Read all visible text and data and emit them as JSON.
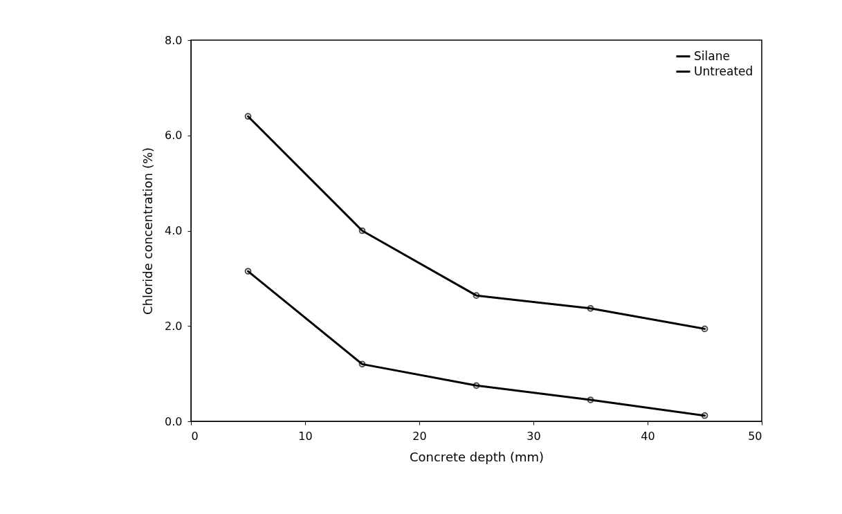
{
  "chart_data": {
    "type": "line",
    "xlabel": "Concrete depth (mm)",
    "ylabel": "Chloride concentration (%)",
    "x": [
      5,
      15,
      25,
      35,
      45
    ],
    "series": [
      {
        "name": "Silane",
        "color": "#000000",
        "values": [
          3.15,
          1.2,
          0.75,
          0.45,
          0.12
        ]
      },
      {
        "name": "Untreated",
        "color": "#000000",
        "values": [
          6.4,
          4.0,
          2.64,
          2.37,
          1.94
        ]
      }
    ],
    "xlim": [
      0,
      50
    ],
    "xticks": [
      0,
      10,
      20,
      30,
      40,
      50
    ],
    "ylim": [
      0,
      8
    ],
    "yticks": [
      {
        "value": 0,
        "label": "0.0"
      },
      {
        "value": 2,
        "label": "2.0"
      },
      {
        "value": 4,
        "label": "4.0"
      },
      {
        "value": 6,
        "label": "6.0"
      },
      {
        "value": 8,
        "label": "8.0"
      }
    ],
    "legend": "top right",
    "grid": false,
    "marker": "circle",
    "line_style": "solid"
  }
}
